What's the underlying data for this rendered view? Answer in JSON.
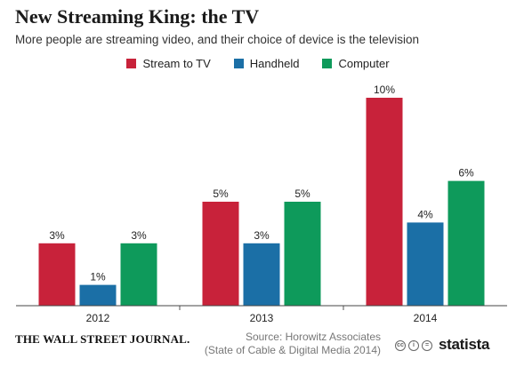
{
  "header": {
    "title": "New Streaming King: the TV",
    "subtitle": "More people are streaming video, and their choice of device is the television"
  },
  "chart_data": {
    "type": "bar",
    "categories": [
      "2012",
      "2013",
      "2014"
    ],
    "series": [
      {
        "name": "Stream to TV",
        "color": "#c8223a",
        "values": [
          3,
          5,
          10
        ],
        "labels": [
          "3%",
          "5%",
          "10%"
        ]
      },
      {
        "name": "Handheld",
        "color": "#1b6fa6",
        "values": [
          1,
          3,
          4
        ],
        "labels": [
          "1%",
          "3%",
          "4%"
        ]
      },
      {
        "name": "Computer",
        "color": "#0e9a5b",
        "values": [
          3,
          5,
          6
        ],
        "labels": [
          "3%",
          "5%",
          "6%"
        ]
      }
    ],
    "ylim": [
      0,
      10
    ],
    "grid": false,
    "legend": "top-center",
    "xlabel": "",
    "ylabel": ""
  },
  "footer": {
    "publisher": "THE WALL STREET JOURNAL.",
    "source_line1": "Source: Horowitz Associates",
    "source_line2": "(State of Cable & Digital Media 2014)",
    "brand": "statista",
    "cc_icons": [
      "cc-icon",
      "by-icon",
      "equals-icon"
    ]
  }
}
